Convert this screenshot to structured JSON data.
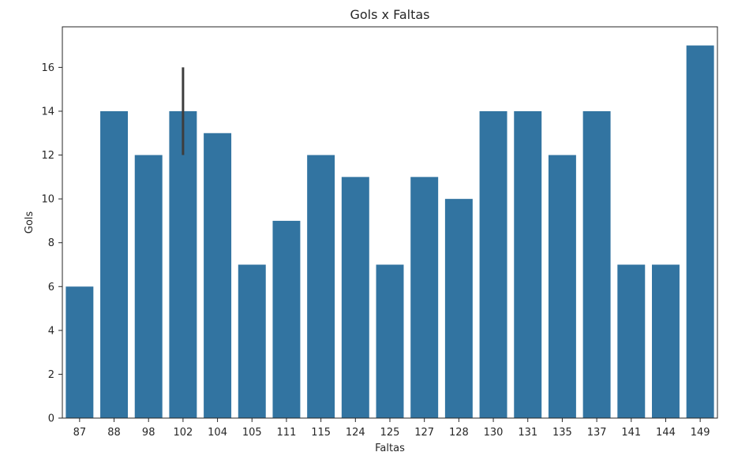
{
  "chart_data": {
    "type": "bar",
    "title": "Gols x Faltas",
    "xlabel": "Faltas",
    "ylabel": "Gols",
    "categories": [
      "87",
      "88",
      "98",
      "102",
      "104",
      "105",
      "111",
      "115",
      "124",
      "125",
      "127",
      "128",
      "130",
      "131",
      "135",
      "137",
      "141",
      "144",
      "149"
    ],
    "values": [
      6,
      14,
      12,
      14,
      13,
      7,
      9,
      12,
      11,
      7,
      11,
      10,
      14,
      14,
      12,
      14,
      7,
      7,
      17
    ],
    "error_bars": [
      {
        "category": "102",
        "low": 12,
        "high": 16
      }
    ],
    "ylim": [
      0,
      17.85
    ],
    "yticks": [
      0,
      2,
      4,
      6,
      8,
      10,
      12,
      14,
      16
    ],
    "grid": false,
    "colors": {
      "bar": "#3274a1",
      "error_bar": "#3d3d3d",
      "axis": "#262626"
    }
  }
}
